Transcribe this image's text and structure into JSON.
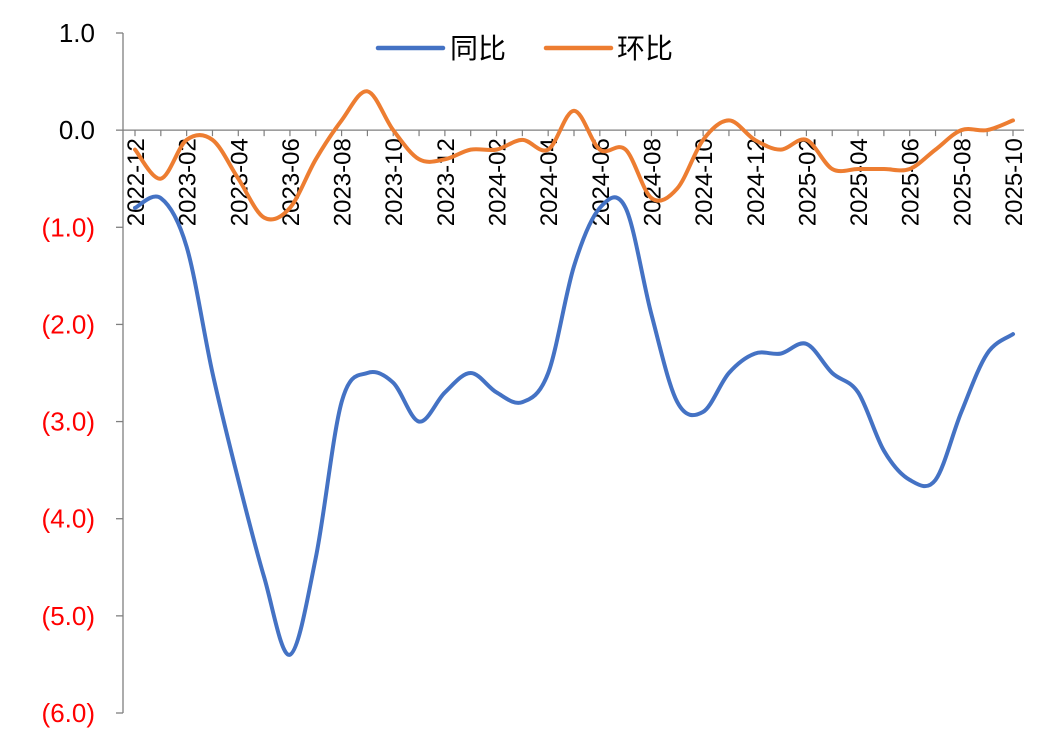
{
  "chart_data": {
    "type": "line",
    "title": "",
    "xlabel": "",
    "ylabel": "",
    "ylim": [
      -6,
      1
    ],
    "yticks": [
      1,
      0,
      -1,
      -2,
      -3,
      -4,
      -5,
      -6
    ],
    "ytick_labels": [
      "1.0",
      "0.0",
      "(1.0)",
      "(2.0)",
      "(3.0)",
      "(4.0)",
      "(5.0)",
      "(6.0)"
    ],
    "ytick_label_colors": [
      "#000000",
      "#000000",
      "#ff0000",
      "#ff0000",
      "#ff0000",
      "#ff0000",
      "#ff0000",
      "#ff0000"
    ],
    "categories": [
      "2022-12",
      "2023-01",
      "2023-02",
      "2023-03",
      "2023-04",
      "2023-05",
      "2023-06",
      "2023-07",
      "2023-08",
      "2023-09",
      "2023-10",
      "2023-11",
      "2023-12",
      "2024-01",
      "2024-02",
      "2024-03",
      "2024-04",
      "2024-05",
      "2024-06",
      "2024-07",
      "2024-08",
      "2024-09",
      "2024-10",
      "2024-11",
      "2024-12",
      "2025-01",
      "2025-02",
      "2025-03",
      "2025-04",
      "2025-05",
      "2025-06",
      "2025-07",
      "2025-08",
      "2025-09",
      "2025-10"
    ],
    "xtick_labels": [
      "2022-12",
      "2023-02",
      "2023-04",
      "2023-06",
      "2023-08",
      "2023-10",
      "2023-12",
      "2024-02",
      "2024-04",
      "2024-06",
      "2024-08",
      "2024-10",
      "2024-12",
      "2025-02",
      "2025-04",
      "2025-06",
      "2025-08",
      "2025-10"
    ],
    "grid": false,
    "legend_position": "top",
    "series": [
      {
        "name": "同比",
        "color": "#4472c4",
        "values": [
          -0.8,
          -0.7,
          -1.2,
          -2.5,
          -3.6,
          -4.6,
          -5.4,
          -4.4,
          -2.8,
          -2.5,
          -2.6,
          -3.0,
          -2.7,
          -2.5,
          -2.7,
          -2.8,
          -2.5,
          -1.4,
          -0.8,
          -0.8,
          -1.9,
          -2.8,
          -2.9,
          -2.5,
          -2.3,
          -2.3,
          -2.2,
          -2.5,
          -2.7,
          -3.3,
          -3.6,
          -3.6,
          -2.9,
          -2.3,
          -2.1
        ]
      },
      {
        "name": "环比",
        "color": "#ed7d31",
        "values": [
          -0.2,
          -0.5,
          -0.1,
          -0.1,
          -0.5,
          -0.9,
          -0.8,
          -0.3,
          0.1,
          0.4,
          0.0,
          -0.3,
          -0.3,
          -0.2,
          -0.2,
          -0.1,
          -0.2,
          0.2,
          -0.2,
          -0.2,
          -0.7,
          -0.6,
          -0.1,
          0.1,
          -0.1,
          -0.2,
          -0.1,
          -0.4,
          -0.4,
          -0.4,
          -0.4,
          -0.2,
          0.0,
          0.0,
          0.1
        ]
      }
    ]
  }
}
